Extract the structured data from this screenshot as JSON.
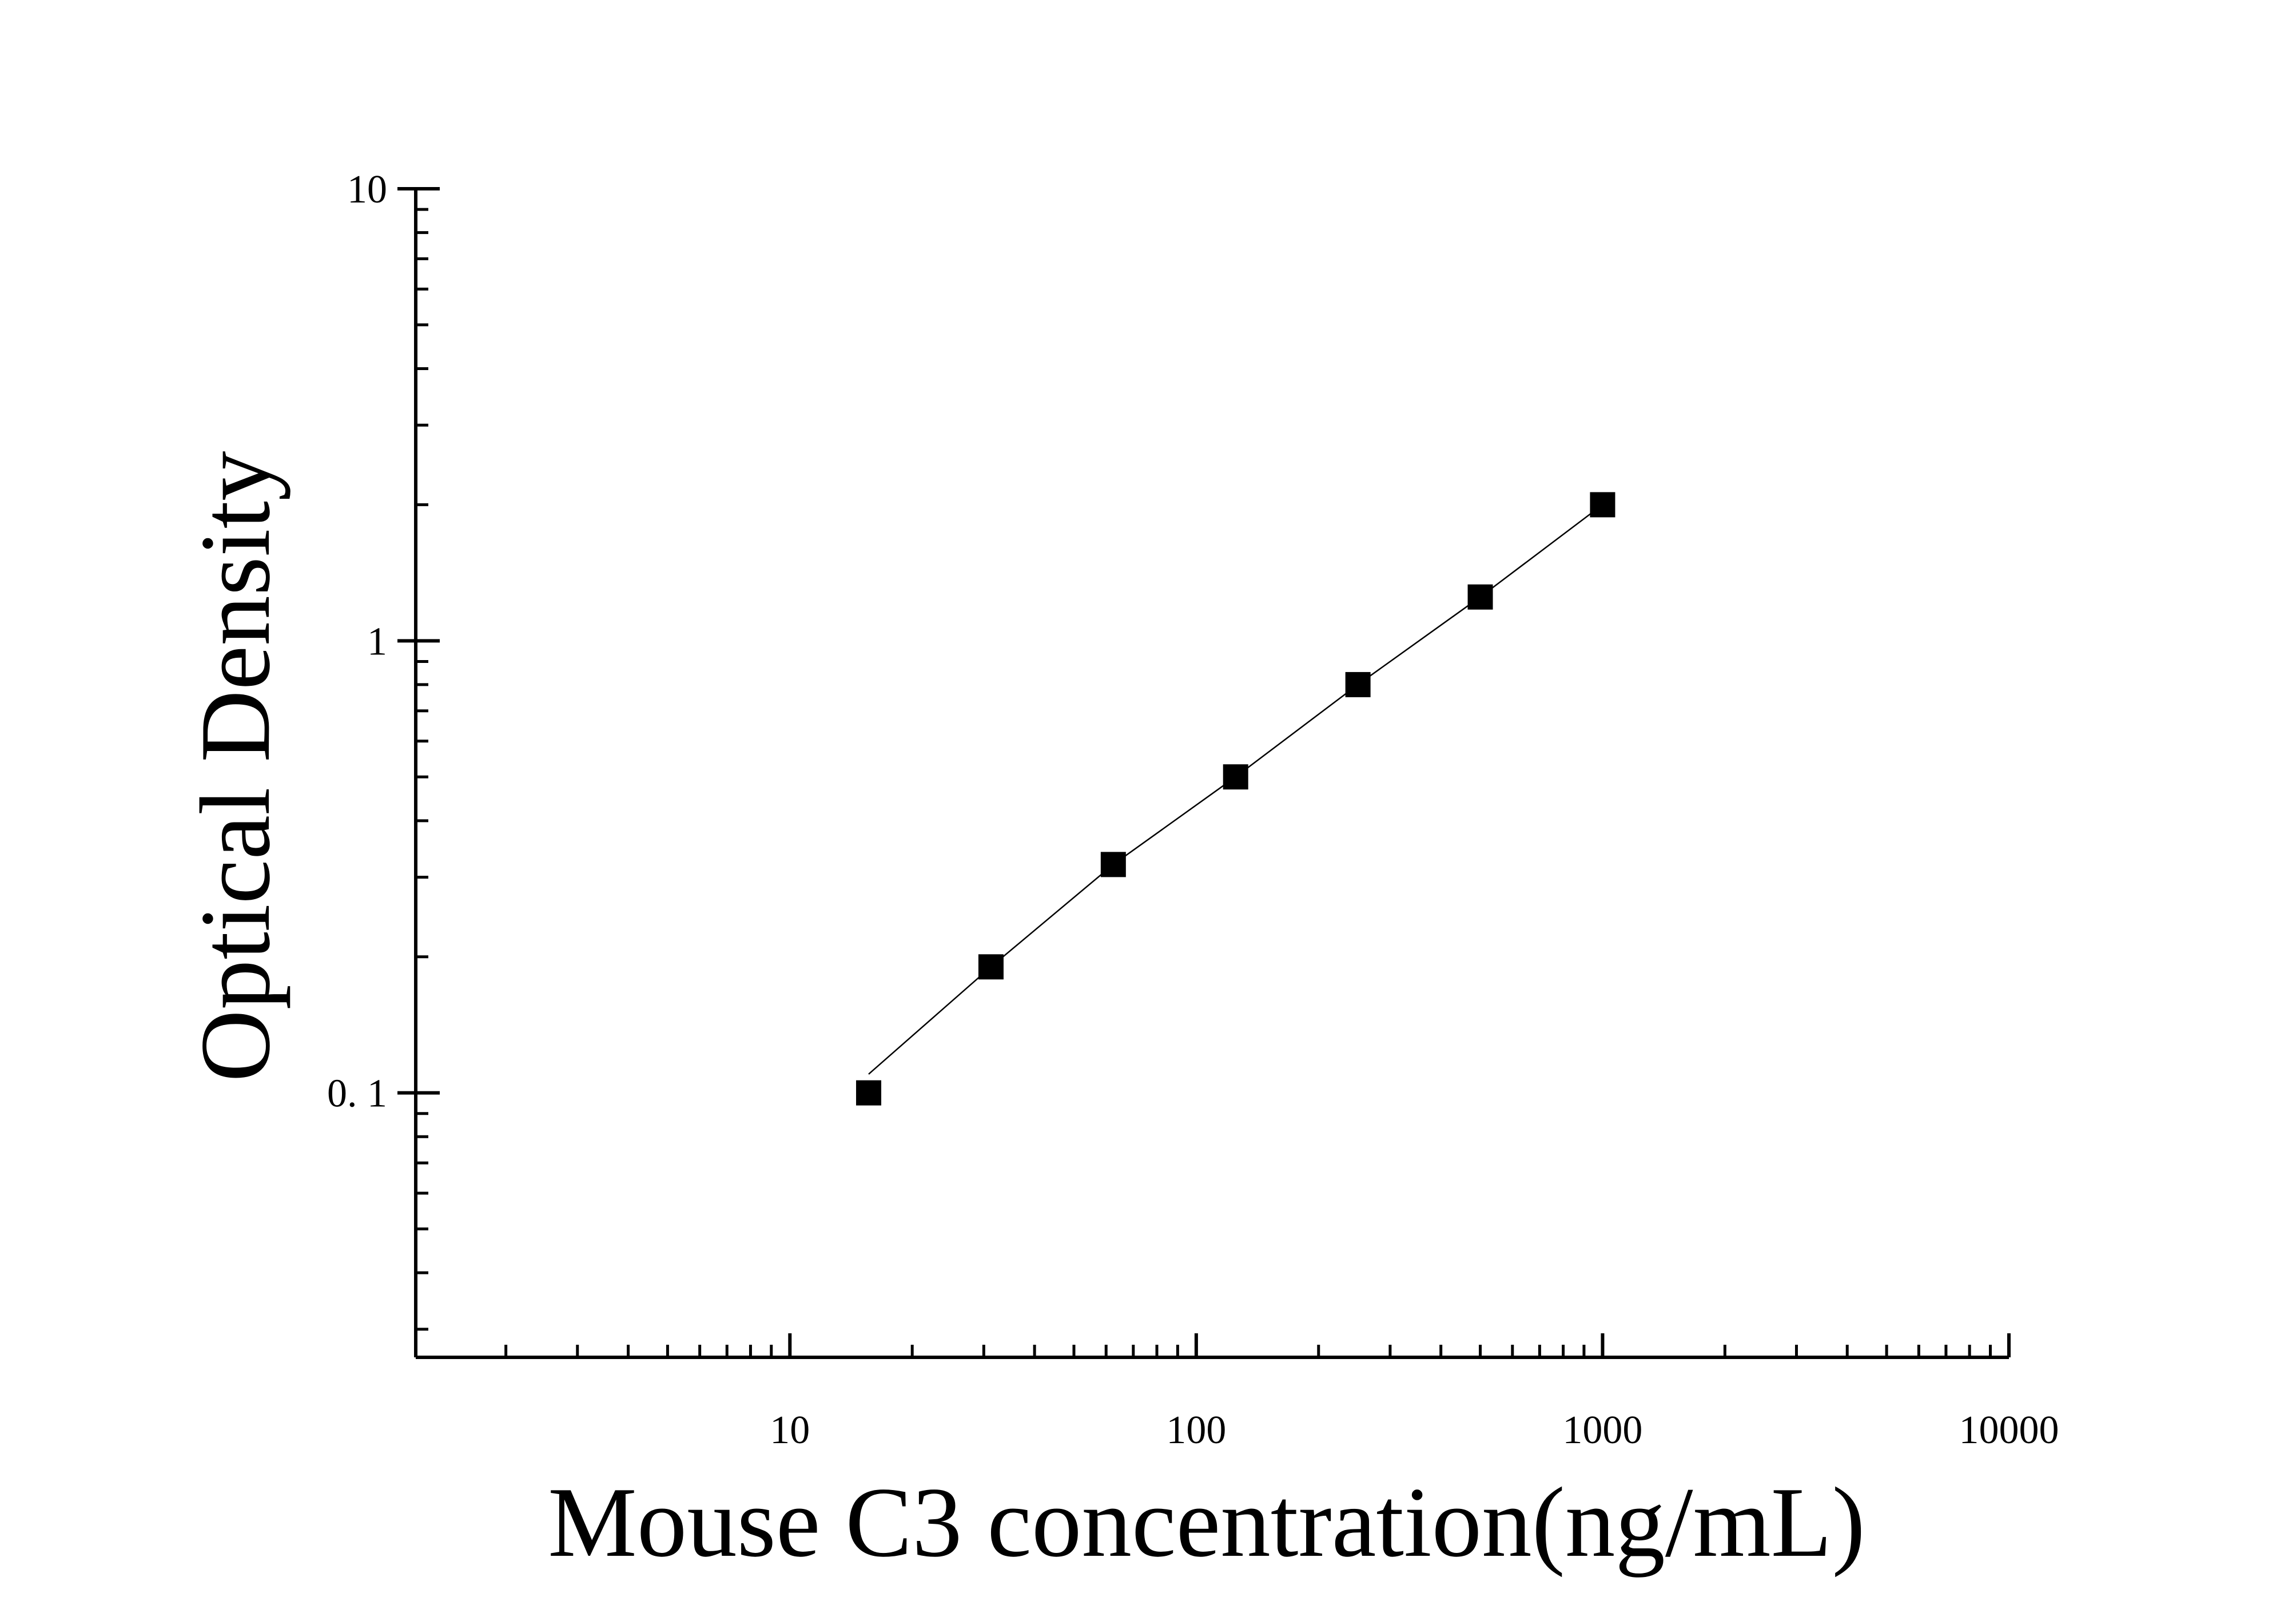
{
  "chart_data": {
    "type": "scatter",
    "xlabel": "Mouse C3 concentration(ng/mL)",
    "ylabel": "Optical Density",
    "x_scale": "log",
    "y_scale": "log",
    "xlim": [
      1.2,
      10000
    ],
    "ylim": [
      0.026,
      10
    ],
    "x_ticks": [
      {
        "value": 10,
        "label": "10"
      },
      {
        "value": 100,
        "label": "100"
      },
      {
        "value": 1000,
        "label": "1000"
      },
      {
        "value": 10000,
        "label": "10000"
      }
    ],
    "y_ticks": [
      {
        "value": 0.1,
        "label": "0. 1"
      },
      {
        "value": 1,
        "label": "1"
      },
      {
        "value": 10,
        "label": "10"
      }
    ],
    "grid": false,
    "marker": "square",
    "color": "#000000",
    "series": [
      {
        "x": [
          15.625,
          31.25,
          62.5,
          125,
          250,
          500,
          1000
        ],
        "y": [
          0.1,
          0.19,
          0.32,
          0.5,
          0.8,
          1.25,
          2.0
        ]
      }
    ],
    "fit_line": {
      "x": [
        15.625,
        31.25,
        62.5,
        125,
        250,
        500,
        1000
      ],
      "y": [
        0.11,
        0.19,
        0.32,
        0.5,
        0.8,
        1.25,
        2.0
      ]
    }
  }
}
